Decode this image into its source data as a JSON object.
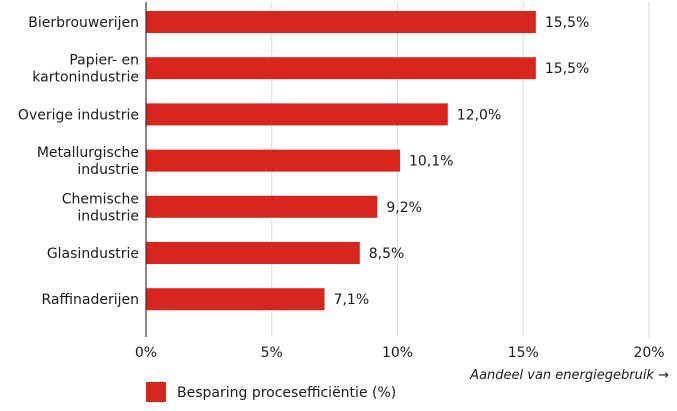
{
  "chart_data": {
    "type": "bar",
    "orientation": "horizontal",
    "categories": [
      [
        "Bierbrouwerijen"
      ],
      [
        "Papier- en",
        "kartonindustrie"
      ],
      [
        "Overige industrie"
      ],
      [
        "Metallurgische",
        "industrie"
      ],
      [
        "Chemische",
        "industrie"
      ],
      [
        "Glasindustrie"
      ],
      [
        "Raffinaderijen"
      ]
    ],
    "series": [
      {
        "name": "Besparing procesefficiëntie (%)",
        "values": [
          15.5,
          15.5,
          12.0,
          10.1,
          9.2,
          8.5,
          7.1
        ],
        "value_labels": [
          "15,5%",
          "15,5%",
          "12,0%",
          "10,1%",
          "9,2%",
          "8,5%",
          "7,1%"
        ]
      }
    ],
    "xlim": [
      0,
      20
    ],
    "xticks": [
      0,
      5,
      10,
      15,
      20
    ],
    "xtick_labels": [
      "0%",
      "5%",
      "10%",
      "15%",
      "20%"
    ],
    "xlabel": "Aandeel van energiegebruik →",
    "ylabel": "",
    "title": "",
    "grid": "vertical",
    "legend": "bottom-left"
  },
  "colors": {
    "bar": "#d7261e",
    "grid": "#d9d9d9",
    "axis": "#333333",
    "text": "#1a1a1a"
  }
}
